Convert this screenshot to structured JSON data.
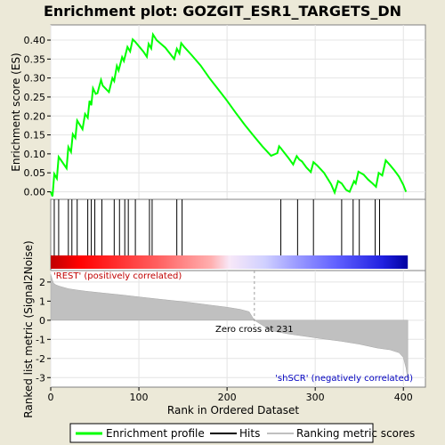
{
  "chart_data": {
    "type": "line",
    "title": "Enrichment plot: GOZGIT_ESR1_TARGETS_DN",
    "panels": {
      "enrichment": {
        "ylabel": "Enrichment score (ES)",
        "ylim": [
          -0.02,
          0.44
        ],
        "yticks": [
          0.0,
          0.05,
          0.1,
          0.15,
          0.2,
          0.25,
          0.3,
          0.35,
          0.4
        ],
        "ytick_labels": [
          "0.00",
          "0.05",
          "0.10",
          "0.15",
          "0.20",
          "0.25",
          "0.30",
          "0.35",
          "0.40"
        ],
        "series": [
          {
            "name": "Enrichment profile",
            "color": "#00ff00",
            "x": [
              0,
              2,
              4,
              7,
              9,
              12,
              18,
              20,
              23,
              25,
              28,
              30,
              36,
              39,
              42,
              44,
              46,
              48,
              51,
              53,
              57,
              59,
              66,
              70,
              72,
              75,
              77,
              81,
              83,
              87,
              90,
              93,
              96,
              105,
              109,
              111,
              114,
              116,
              120,
              130,
              140,
              143,
              146,
              148,
              151,
              160,
              170,
              180,
              190,
              200,
              210,
              220,
              230,
              240,
              250,
              257,
              259,
              261,
              265,
              270,
              275,
              279,
              282,
              285,
              290,
              295,
              298,
              302,
              310,
              318,
              322,
              326,
              330,
              335,
              339,
              344,
              346,
              349,
              355,
              360,
              365,
              369,
              372,
              376,
              380,
              385,
              390,
              395,
              400,
              403
            ],
            "y": [
              0.0,
              -0.012,
              0.047,
              0.035,
              0.092,
              0.082,
              0.062,
              0.118,
              0.105,
              0.152,
              0.142,
              0.188,
              0.165,
              0.205,
              0.195,
              0.24,
              0.228,
              0.273,
              0.258,
              0.26,
              0.295,
              0.28,
              0.263,
              0.3,
              0.292,
              0.332,
              0.32,
              0.355,
              0.345,
              0.382,
              0.37,
              0.402,
              0.395,
              0.37,
              0.356,
              0.39,
              0.378,
              0.415,
              0.4,
              0.38,
              0.35,
              0.377,
              0.365,
              0.392,
              0.383,
              0.36,
              0.333,
              0.3,
              0.27,
              0.24,
              0.208,
              0.177,
              0.148,
              0.12,
              0.095,
              0.102,
              0.12,
              0.115,
              0.103,
              0.088,
              0.072,
              0.094,
              0.085,
              0.08,
              0.064,
              0.052,
              0.078,
              0.07,
              0.05,
              0.02,
              -0.002,
              0.028,
              0.022,
              0.005,
              0.0,
              0.028,
              0.022,
              0.053,
              0.045,
              0.032,
              0.022,
              0.013,
              0.05,
              0.043,
              0.083,
              0.07,
              0.056,
              0.04,
              0.018,
              0.0
            ]
          }
        ]
      },
      "hits": {
        "name": "Hits",
        "positions": [
          4,
          9,
          20,
          24,
          30,
          42,
          46,
          50,
          58,
          72,
          78,
          84,
          88,
          96,
          112,
          115,
          143,
          149,
          261,
          280,
          298,
          330,
          343,
          350,
          368,
          373
        ]
      },
      "ranked_metric": {
        "name": "Ranking metric scores",
        "ylabel": "Ranked list metric (Signal2Noise)",
        "ylim": [
          -3.5,
          2.6
        ],
        "yticks": [
          -3,
          -2,
          -1,
          0,
          1,
          2
        ],
        "ytick_labels": [
          "-3",
          "-2",
          "-1",
          "0",
          "1",
          "2"
        ],
        "x": [
          0,
          3,
          6,
          10,
          20,
          30,
          40,
          60,
          80,
          100,
          120,
          140,
          160,
          180,
          200,
          215,
          225,
          231,
          250,
          270,
          290,
          310,
          330,
          350,
          370,
          385,
          395,
          400,
          403,
          405
        ],
        "y": [
          2.4,
          1.95,
          1.85,
          1.78,
          1.65,
          1.58,
          1.52,
          1.42,
          1.33,
          1.22,
          1.12,
          1.02,
          0.92,
          0.8,
          0.68,
          0.57,
          0.45,
          0.0,
          -0.55,
          -0.72,
          -0.85,
          -0.98,
          -1.1,
          -1.25,
          -1.45,
          -1.55,
          -1.7,
          -1.95,
          -2.5,
          -3.1
        ],
        "zero_cross_label": "Zero cross at 231",
        "zero_cross": 231,
        "pos_label": "'REST' (positively correlated)",
        "neg_label": "'shSCR' (negatively correlated)"
      }
    },
    "xlabel": "Rank in Ordered Dataset",
    "xlim": [
      0,
      425
    ],
    "xticks": [
      0,
      100,
      200,
      300,
      400
    ],
    "xtick_labels": [
      "0",
      "100",
      "200",
      "300",
      "400"
    ],
    "legend": {
      "placement": "bottom",
      "entries": [
        "Enrichment profile",
        "Hits",
        "Ranking metric scores"
      ]
    },
    "colors": {
      "profile": "#00ff00",
      "hits": "#000000",
      "metric_fill": "#c0c0c0",
      "pos_label": "#c00000",
      "neg_label": "#0000c0"
    }
  }
}
